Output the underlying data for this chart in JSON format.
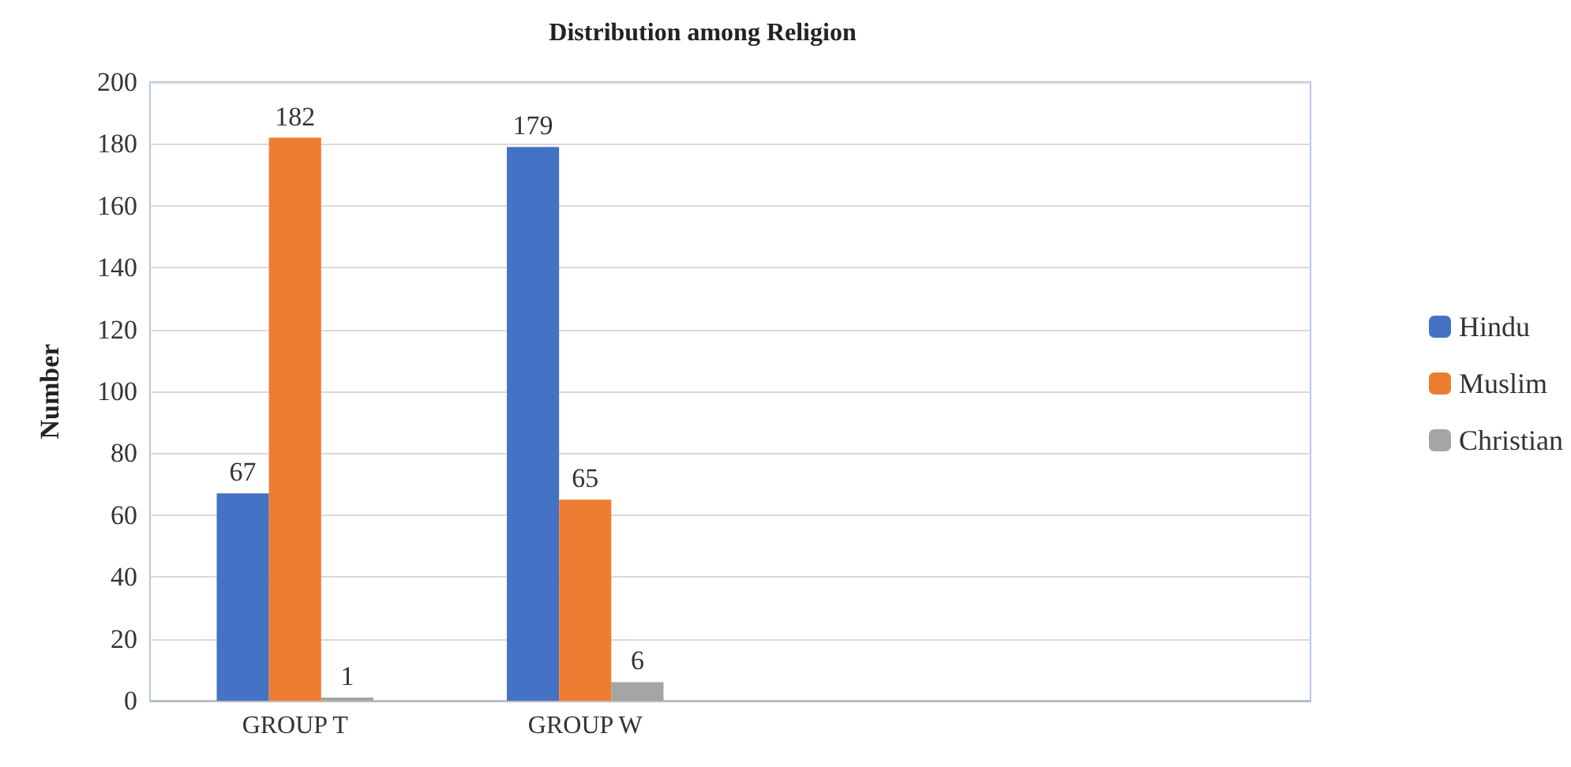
{
  "chart_data": {
    "type": "bar",
    "title": "Distribution among Religion",
    "ylabel": "Number",
    "categories": [
      "GROUP T",
      "GROUP W",
      null,
      null
    ],
    "series": [
      {
        "name": "Hindu",
        "color": "#4472c4",
        "values": [
          67,
          179,
          null,
          null
        ]
      },
      {
        "name": "Muslim",
        "color": "#ed7d31",
        "values": [
          182,
          65,
          null,
          null
        ]
      },
      {
        "name": "Christian",
        "color": "#a5a5a5",
        "values": [
          1,
          6,
          null,
          null
        ]
      }
    ],
    "ylim": [
      0,
      200
    ],
    "yticks": [
      0,
      20,
      40,
      60,
      80,
      100,
      120,
      140,
      160,
      180,
      200
    ],
    "grid": "y",
    "legend": "right",
    "data_labels": true
  }
}
